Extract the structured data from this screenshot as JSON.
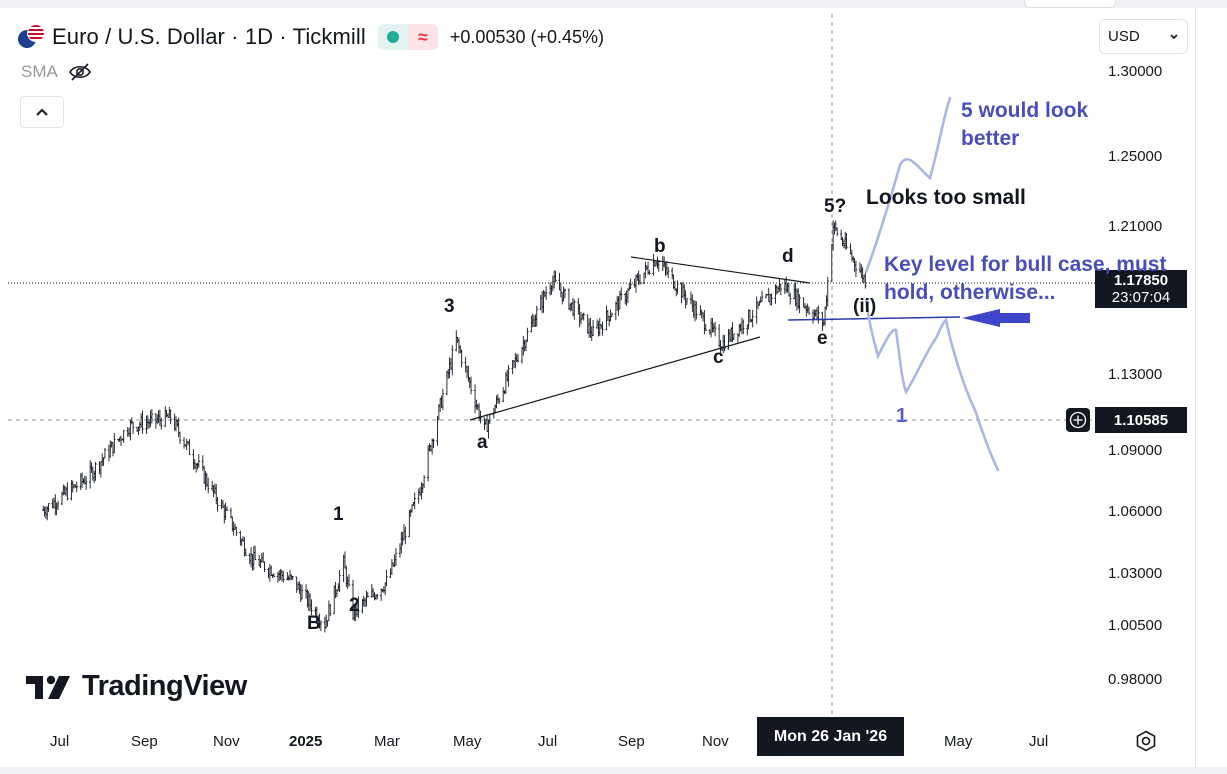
{
  "header": {
    "title": "Euro / U.S. Dollar · 1D · Tickmill",
    "change": "+0.00530 (+0.45%)",
    "market_status_color": "#22ab94"
  },
  "indicator": {
    "label": "SMA"
  },
  "currency_select": {
    "value": "USD"
  },
  "price_axis": {
    "ticks": [
      "1.30000",
      "1.25000",
      "1.21000",
      "1.13000",
      "1.09000",
      "1.06000",
      "1.03000",
      "1.00500",
      "0.98000"
    ],
    "last_price": "1.17850",
    "countdown": "23:07:04",
    "crosshair_price": "1.10585"
  },
  "time_axis": {
    "ticks": [
      "Jul",
      "Sep",
      "Nov",
      "2025",
      "Mar",
      "May",
      "Jul",
      "Sep",
      "Nov",
      "May",
      "Jul"
    ],
    "crosshair_date": "Mon 26 Jan '26"
  },
  "logo": {
    "text": "TradingView"
  },
  "wave_labels": [
    "B",
    "1",
    "2",
    "3",
    "a",
    "b",
    "c",
    "d",
    "e",
    "(ii)",
    "5?"
  ],
  "annotations": {
    "looks_small": "Looks too small",
    "five_better_1": "5 would look",
    "five_better_2": "better",
    "key_level_1": "Key level for bull case, must",
    "key_level_2": "hold, otherwise...",
    "bear_one": "1"
  },
  "chart_data": {
    "type": "candlestick",
    "symbol": "EURUSD",
    "interval": "1D",
    "broker": "Tickmill",
    "x_range": [
      "2024-06",
      "2026-07"
    ],
    "ylim": [
      0.97,
      1.31
    ],
    "last_price": 1.1785,
    "crosshair": {
      "date": "2026-01-26",
      "price": 1.10585
    },
    "key_level": 1.156,
    "path": [
      [
        "2024-06-15",
        1.072
      ],
      [
        "2024-07-20",
        1.088
      ],
      [
        "2024-08-20",
        1.112
      ],
      [
        "2024-09-20",
        1.116
      ],
      [
        "2024-10-20",
        1.083
      ],
      [
        "2024-11-20",
        1.05
      ],
      [
        "2024-12-20",
        1.04
      ],
      [
        "2025-01-13",
        1.02
      ],
      [
        "2025-01-27",
        1.048
      ],
      [
        "2025-02-03",
        1.025
      ],
      [
        "2025-03-01",
        1.04
      ],
      [
        "2025-03-25",
        1.083
      ],
      [
        "2025-04-21",
        1.152
      ],
      [
        "2025-05-12",
        1.11
      ],
      [
        "2025-07-01",
        1.18
      ],
      [
        "2025-08-01",
        1.155
      ],
      [
        "2025-09-17",
        1.19
      ],
      [
        "2025-11-05",
        1.15
      ],
      [
        "2025-12-20",
        1.178
      ],
      [
        "2026-01-20",
        1.16
      ],
      [
        "2026-01-27",
        1.205
      ],
      [
        "2026-02-20",
        1.18
      ]
    ],
    "wave_count": [
      {
        "label": "B",
        "date": "2025-01-13",
        "price": 1.02
      },
      {
        "label": "1",
        "date": "2025-01-27",
        "price": 1.048
      },
      {
        "label": "2",
        "date": "2025-02-03",
        "price": 1.025
      },
      {
        "label": "3",
        "date": "2025-04-21",
        "price": 1.152
      },
      {
        "label": "a",
        "date": "2025-05-12",
        "price": 1.11
      },
      {
        "label": "b",
        "date": "2025-09-17",
        "price": 1.19
      },
      {
        "label": "c",
        "date": "2025-11-05",
        "price": 1.15
      },
      {
        "label": "d",
        "date": "2025-12-20",
        "price": 1.178
      },
      {
        "label": "e",
        "date": "2026-01-20",
        "price": 1.16
      },
      {
        "label": "5?",
        "date": "2026-01-27",
        "price": 1.205
      },
      {
        "label": "(ii)",
        "date": "2026-02-10",
        "price": 1.165
      }
    ],
    "colors": {
      "candles": "#131722",
      "projection": "#aab6e3",
      "annotation": "#4a4fb8",
      "arrow": "#3f45c8",
      "key_level": "#2c3aa8"
    }
  }
}
